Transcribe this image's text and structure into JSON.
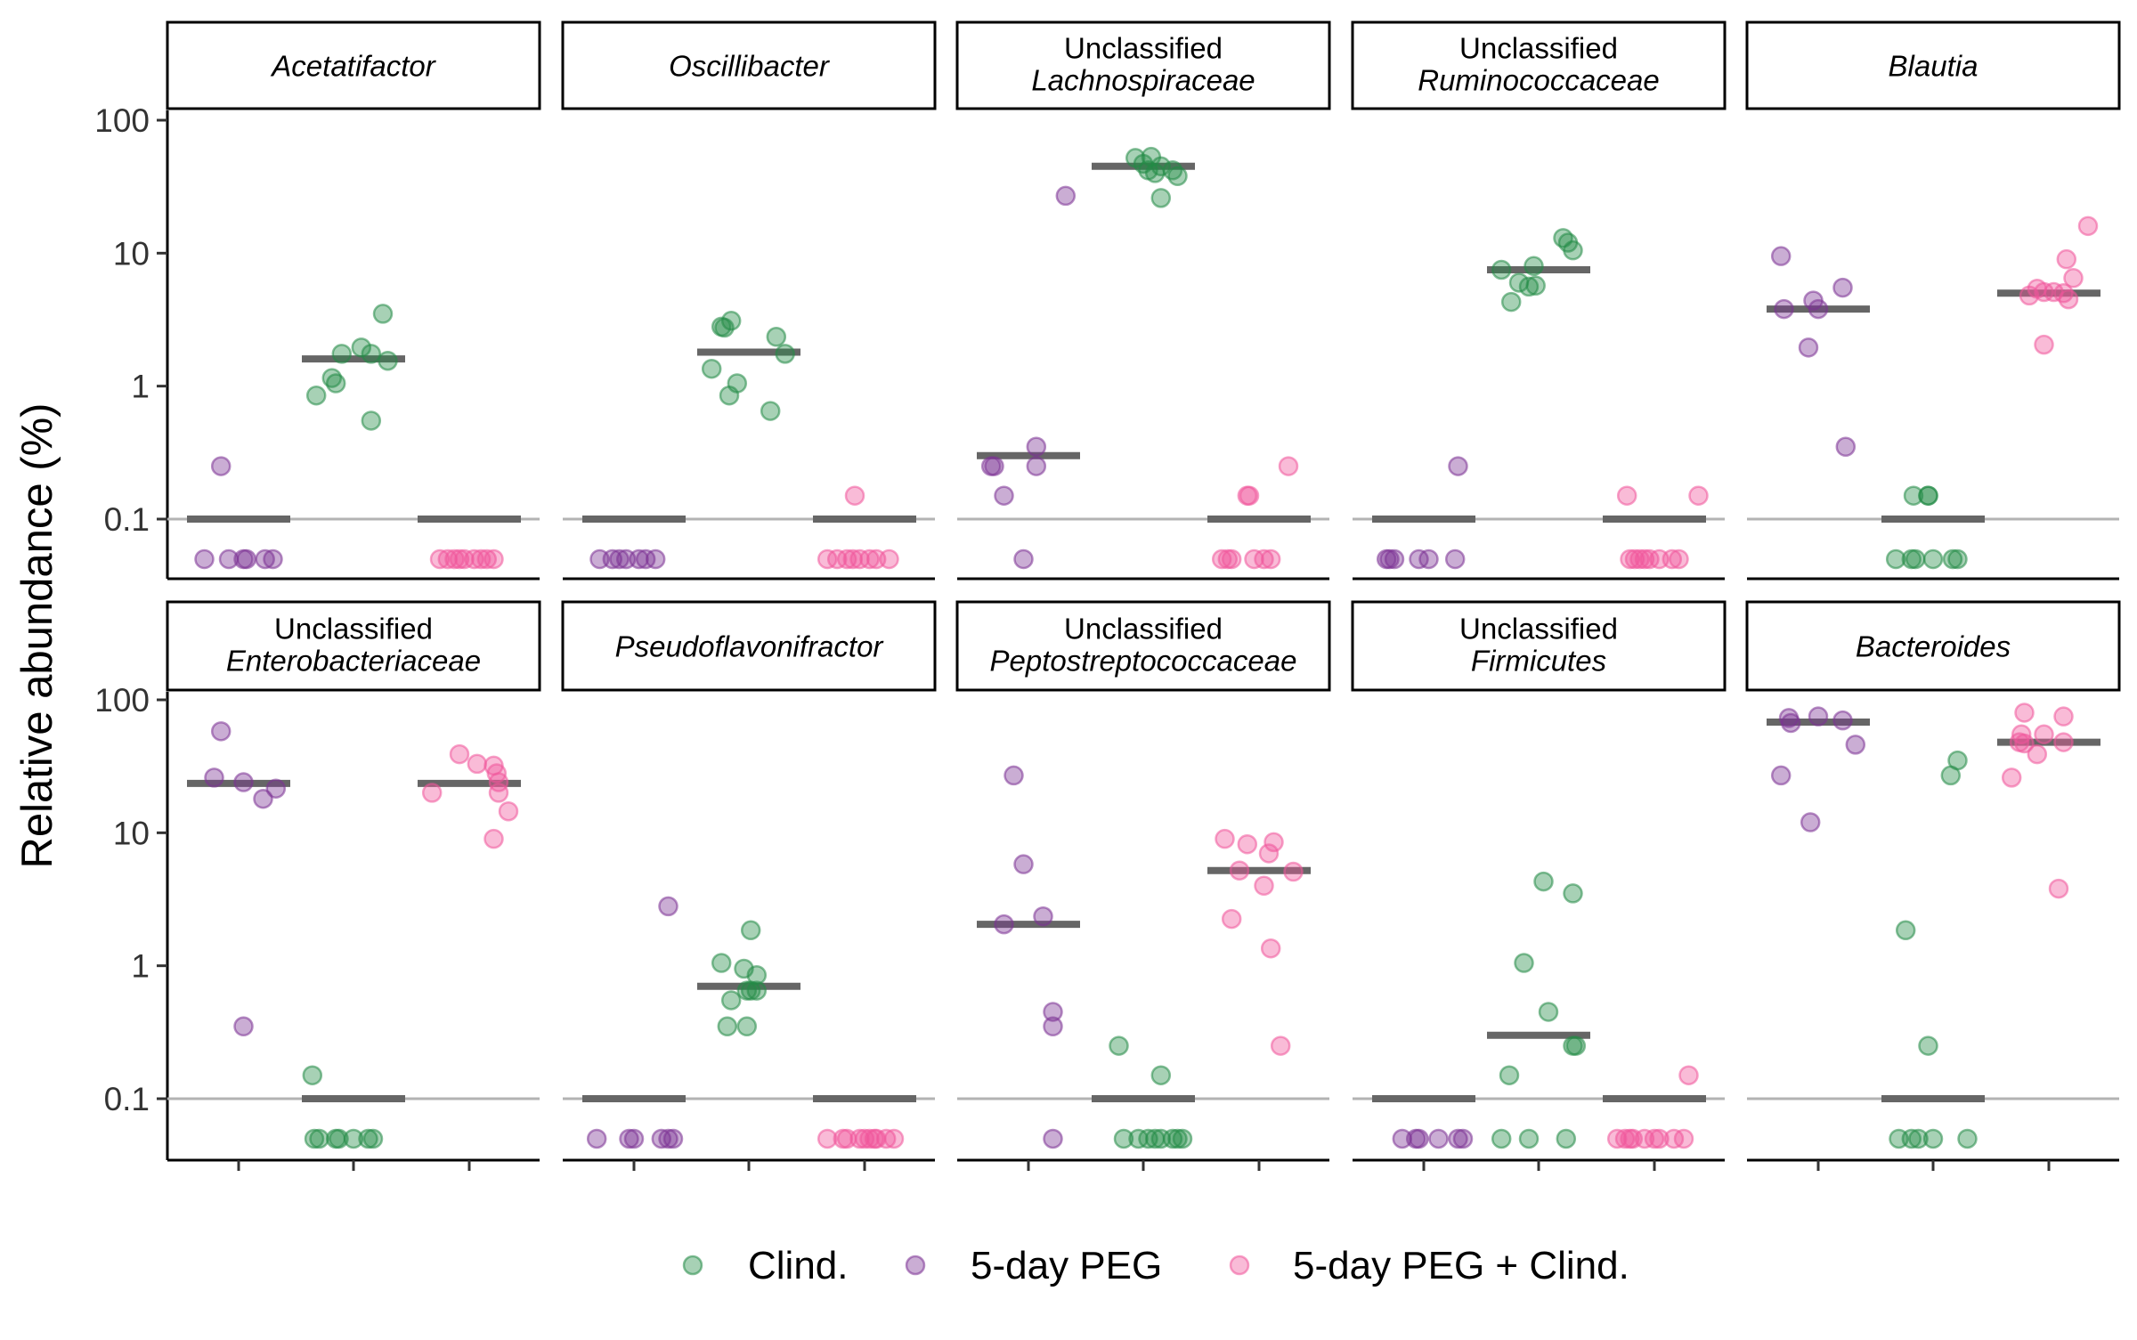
{
  "chart_data": {
    "type": "scatter",
    "layout": "faceted dot plot, 2 rows x 5 columns, shared log10 y-axis",
    "y_axis": {
      "label": "Relative abundance (%)",
      "scale": "log10",
      "ticks": [
        0.1,
        1,
        10,
        100
      ],
      "tick_labels": [
        "0.1",
        "1",
        "10",
        "100"
      ],
      "ylim": [
        0.04,
        130
      ],
      "reference_line": 0.1
    },
    "x_axis": {
      "label": "",
      "tick_labels": [
        "",
        "",
        ""
      ]
    },
    "groups": [
      {
        "key": "peg",
        "name": "5-day PEG",
        "color": "#7b3294"
      },
      {
        "key": "clind",
        "name": "Clind.",
        "color": "#238b45"
      },
      {
        "key": "pegclind",
        "name": "5-day PEG + Clind.",
        "color": "#f0559b"
      }
    ],
    "legend": {
      "position": "bottom",
      "order": [
        "clind",
        "peg",
        "pegclind"
      ],
      "labels": [
        "Clind.",
        "5-day PEG",
        "5-day PEG + Clind."
      ]
    },
    "panels": [
      {
        "title_lines": [
          "Acetatifactor"
        ],
        "italic_lines": [
          0
        ],
        "medians": [
          0.1,
          1.6,
          0.1
        ],
        "series": [
          {
            "group": "peg",
            "x": [
              -0.35,
              -0.1,
              0.05,
              0.08,
              0.27,
              0.35,
              -0.18
            ],
            "y": [
              0.05,
              0.05,
              0.05,
              0.05,
              0.05,
              0.05,
              0.25
            ]
          },
          {
            "group": "clind",
            "x": [
              -0.38,
              -0.22,
              -0.18,
              -0.12,
              0.08,
              0.18,
              0.35,
              0.3,
              0.18
            ],
            "y": [
              0.85,
              1.15,
              1.05,
              1.75,
              1.95,
              1.75,
              1.55,
              3.5,
              0.55
            ]
          },
          {
            "group": "pegclind",
            "x": [
              -0.3,
              -0.22,
              -0.15,
              -0.1,
              -0.05,
              0.05,
              0.12,
              0.18,
              0.25
            ],
            "y": [
              0.05,
              0.05,
              0.05,
              0.05,
              0.05,
              0.05,
              0.05,
              0.05,
              0.05
            ]
          }
        ]
      },
      {
        "title_lines": [
          "Oscillibacter"
        ],
        "italic_lines": [
          0
        ],
        "medians": [
          0.1,
          1.8,
          0.1
        ],
        "series": [
          {
            "group": "peg",
            "x": [
              -0.35,
              -0.22,
              -0.15,
              -0.08,
              0.05,
              0.12,
              0.22
            ],
            "y": [
              0.05,
              0.05,
              0.05,
              0.05,
              0.05,
              0.05,
              0.05
            ]
          },
          {
            "group": "clind",
            "x": [
              -0.38,
              -0.28,
              -0.25,
              -0.18,
              -0.2,
              -0.12,
              0.28,
              0.37,
              0.22
            ],
            "y": [
              1.35,
              2.8,
              2.75,
              3.1,
              0.85,
              1.05,
              2.35,
              1.75,
              0.65
            ]
          },
          {
            "group": "pegclind",
            "x": [
              -0.38,
              -0.28,
              -0.18,
              -0.12,
              -0.05,
              0.05,
              0.12,
              0.25,
              -0.1
            ],
            "y": [
              0.05,
              0.05,
              0.05,
              0.05,
              0.05,
              0.05,
              0.05,
              0.05,
              0.15
            ]
          }
        ]
      },
      {
        "title_lines": [
          "Unclassified",
          "Lachnospiraceae"
        ],
        "italic_lines": [
          1
        ],
        "medians": [
          0.3,
          45,
          0.1
        ],
        "series": [
          {
            "group": "peg",
            "x": [
              -0.38,
              -0.35,
              -0.25,
              -0.05,
              0.08,
              0.08,
              0.38
            ],
            "y": [
              0.25,
              0.25,
              0.15,
              0.05,
              0.35,
              0.25,
              27
            ]
          },
          {
            "group": "clind",
            "x": [
              -0.08,
              0.0,
              0.05,
              0.08,
              0.12,
              0.18,
              0.3,
              0.35,
              0.18
            ],
            "y": [
              52,
              47,
              42,
              53,
              40,
              45,
              42,
              38,
              26
            ]
          },
          {
            "group": "pegclind",
            "x": [
              -0.38,
              -0.32,
              -0.28,
              -0.12,
              -0.1,
              -0.05,
              0.05,
              0.12,
              0.3
            ],
            "y": [
              0.05,
              0.05,
              0.05,
              0.15,
              0.15,
              0.05,
              0.05,
              0.05,
              0.25
            ]
          }
        ]
      },
      {
        "title_lines": [
          "Unclassified",
          "Ruminococcaceae"
        ],
        "italic_lines": [
          1
        ],
        "medians": [
          0.1,
          7.5,
          0.1
        ],
        "series": [
          {
            "group": "peg",
            "x": [
              -0.38,
              -0.35,
              -0.3,
              -0.05,
              0.05,
              0.32,
              0.35
            ],
            "y": [
              0.05,
              0.05,
              0.05,
              0.05,
              0.05,
              0.05,
              0.25
            ]
          },
          {
            "group": "clind",
            "x": [
              -0.38,
              -0.28,
              -0.2,
              -0.05,
              -0.03,
              -0.1,
              0.25,
              0.3,
              0.35
            ],
            "y": [
              7.5,
              4.3,
              6,
              8,
              5.7,
              5.6,
              13,
              12,
              10.5
            ]
          },
          {
            "group": "pegclind",
            "x": [
              -0.25,
              -0.2,
              -0.15,
              -0.1,
              -0.05,
              0.05,
              0.18,
              0.25,
              -0.28,
              0.45
            ],
            "y": [
              0.05,
              0.05,
              0.05,
              0.05,
              0.05,
              0.05,
              0.05,
              0.05,
              0.15,
              0.15
            ]
          }
        ]
      },
      {
        "title_lines": [
          "Blautia"
        ],
        "italic_lines": [
          0
        ],
        "medians": [
          3.8,
          0.1,
          5
        ],
        "series": [
          {
            "group": "peg",
            "x": [
              -0.38,
              -0.35,
              -0.1,
              -0.05,
              0.0,
              0.25,
              0.28
            ],
            "y": [
              9.5,
              3.8,
              1.95,
              4.4,
              3.8,
              5.5,
              0.35
            ]
          },
          {
            "group": "clind",
            "x": [
              -0.38,
              -0.22,
              -0.18,
              -0.2,
              -0.05,
              -0.05,
              0.0,
              0.2,
              0.25
            ],
            "y": [
              0.05,
              0.05,
              0.05,
              0.15,
              0.15,
              0.15,
              0.05,
              0.05,
              0.05
            ]
          },
          {
            "group": "pegclind",
            "x": [
              -0.2,
              -0.12,
              -0.05,
              0.05,
              0.15,
              0.18,
              0.2,
              0.25,
              0.4,
              -0.05
            ],
            "y": [
              4.8,
              5.4,
              2.05,
              5.1,
              5,
              9,
              4.5,
              6.5,
              16,
              5.1
            ]
          }
        ]
      },
      {
        "title_lines": [
          "Unclassified",
          "Enterobacteriaceae"
        ],
        "italic_lines": [
          1
        ],
        "medians": [
          23.5,
          0.1,
          23.5
        ],
        "series": [
          {
            "group": "peg",
            "x": [
              -0.25,
              -0.18,
              0.05,
              0.25,
              0.38,
              0.05
            ],
            "y": [
              26,
              58,
              24,
              18,
              21.5,
              0.35
            ]
          },
          {
            "group": "clind",
            "x": [
              -0.4,
              -0.35,
              -0.18,
              -0.15,
              0.0,
              0.15,
              0.2,
              -0.42
            ],
            "y": [
              0.05,
              0.05,
              0.05,
              0.05,
              0.05,
              0.05,
              0.05,
              0.15
            ]
          },
          {
            "group": "pegclind",
            "x": [
              -0.38,
              -0.1,
              0.08,
              0.25,
              0.28,
              0.3,
              0.3,
              0.4,
              0.25
            ],
            "y": [
              20,
              39,
              33,
              32,
              28,
              24,
              20,
              14.5,
              9
            ]
          }
        ]
      },
      {
        "title_lines": [
          "Pseudoflavonifractor"
        ],
        "italic_lines": [
          0
        ],
        "medians": [
          0.1,
          0.7,
          0.1
        ],
        "series": [
          {
            "group": "peg",
            "x": [
              -0.38,
              -0.05,
              0.0,
              0.28,
              0.35,
              0.4,
              0.35
            ],
            "y": [
              0.05,
              0.05,
              0.05,
              0.05,
              0.05,
              0.05,
              2.8
            ]
          },
          {
            "group": "clind",
            "x": [
              -0.28,
              -0.22,
              -0.18,
              -0.05,
              -0.02,
              0.02,
              0.08,
              0.08,
              0.02,
              -0.02
            ],
            "y": [
              1.05,
              0.35,
              0.55,
              0.95,
              0.35,
              0.65,
              0.85,
              0.65,
              1.85,
              0.65
            ]
          },
          {
            "group": "pegclind",
            "x": [
              -0.38,
              -0.22,
              -0.18,
              -0.05,
              0.0,
              0.05,
              0.1,
              0.12,
              0.22,
              0.3
            ],
            "y": [
              0.05,
              0.05,
              0.05,
              0.05,
              0.05,
              0.05,
              0.05,
              0.05,
              0.05,
              0.05
            ]
          }
        ]
      },
      {
        "title_lines": [
          "Unclassified",
          "Peptostreptococcaceae"
        ],
        "italic_lines": [
          1
        ],
        "medians": [
          2.05,
          0.1,
          5.2
        ],
        "series": [
          {
            "group": "peg",
            "x": [
              -0.25,
              -0.15,
              -0.05,
              0.15,
              0.25,
              0.25,
              0.25
            ],
            "y": [
              2.05,
              27,
              5.8,
              2.35,
              0.35,
              0.45,
              0.05
            ]
          },
          {
            "group": "clind",
            "x": [
              -0.25,
              -0.2,
              -0.05,
              0.05,
              0.12,
              0.18,
              0.3,
              0.35,
              0.4,
              0.18
            ],
            "y": [
              0.25,
              0.05,
              0.05,
              0.05,
              0.05,
              0.05,
              0.05,
              0.05,
              0.05,
              0.15
            ]
          },
          {
            "group": "pegclind",
            "x": [
              -0.35,
              -0.28,
              -0.2,
              -0.12,
              0.05,
              0.1,
              0.15,
              0.12,
              0.22,
              0.35
            ],
            "y": [
              9,
              2.25,
              5.2,
              8.2,
              4,
              7,
              8.5,
              1.35,
              0.25,
              5.1
            ]
          }
        ]
      },
      {
        "title_lines": [
          "Unclassified",
          "Firmicutes"
        ],
        "italic_lines": [
          1
        ],
        "medians": [
          0.1,
          0.3,
          0.1
        ],
        "series": [
          {
            "group": "peg",
            "x": [
              -0.22,
              -0.08,
              -0.05,
              0.15,
              0.35,
              0.4
            ],
            "y": [
              0.05,
              0.05,
              0.05,
              0.05,
              0.05,
              0.05
            ]
          },
          {
            "group": "clind",
            "x": [
              -0.38,
              -0.3,
              -0.15,
              -0.1,
              0.05,
              0.1,
              0.35,
              0.38,
              0.28,
              0.35
            ],
            "y": [
              0.05,
              0.15,
              1.05,
              0.05,
              4.3,
              0.45,
              3.5,
              0.25,
              0.05,
              0.25
            ]
          },
          {
            "group": "pegclind",
            "x": [
              -0.38,
              -0.3,
              -0.25,
              -0.22,
              -0.1,
              0.0,
              0.05,
              0.2,
              0.3,
              0.35
            ],
            "y": [
              0.05,
              0.05,
              0.05,
              0.05,
              0.05,
              0.05,
              0.05,
              0.05,
              0.05,
              0.15
            ]
          }
        ]
      },
      {
        "title_lines": [
          "Bacteroides"
        ],
        "italic_lines": [
          0
        ],
        "medians": [
          68,
          0.1,
          48
        ],
        "series": [
          {
            "group": "peg",
            "x": [
              -0.38,
              -0.3,
              -0.28,
              -0.08,
              0.0,
              0.25,
              0.38
            ],
            "y": [
              27,
              73,
              67,
              12,
              75,
              70,
              46
            ]
          },
          {
            "group": "clind",
            "x": [
              -0.35,
              -0.28,
              -0.22,
              -0.15,
              -0.05,
              0.0,
              0.18,
              0.25,
              0.35
            ],
            "y": [
              0.05,
              1.85,
              0.05,
              0.05,
              0.25,
              0.05,
              27,
              35,
              0.05
            ]
          },
          {
            "group": "pegclind",
            "x": [
              -0.38,
              -0.3,
              -0.28,
              -0.25,
              -0.25,
              -0.12,
              -0.05,
              0.1,
              0.15,
              0.15
            ],
            "y": [
              26,
              48,
              55,
              47,
              80,
              39,
              55,
              3.8,
              75,
              48
            ]
          }
        ]
      }
    ]
  }
}
